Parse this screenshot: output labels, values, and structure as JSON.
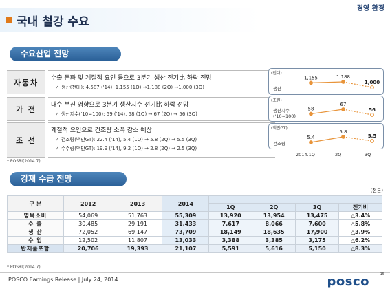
{
  "header": {
    "section": "경영 환경",
    "title": "국내 철강 수요"
  },
  "demand": {
    "pill": "수요산업 전망",
    "rows": [
      {
        "name": "자동차",
        "text": "수출 둔화 및 계절적 요인 등으로 3분기 생산 전기比 하락 전망",
        "sub": "생산(천대): 4,587 ('14), 1,155 (1Q) →1,188 (2Q) →1,000 (3Q)"
      },
      {
        "name": "가 전",
        "text": "내수 부진 영향으로 3분기 생산지수 전기比 하락 전망",
        "sub": "생산지수('10=100): 59 ('14), 58 (1Q) → 67 (2Q) → 56 (3Q)"
      },
      {
        "name": "조 선",
        "text": "계절적 요인으로 건조량 소폭 감소 예상",
        "sub": "건조량(백만GT): 22.4 ('14), 5.4 (1Q) → 5.8 (2Q) → 5.5 (3Q)",
        "sub2": "수주량(백만GT): 19.9 ('14), 9.2 (1Q) → 2.8 (2Q) → 2.5 (3Q)"
      }
    ],
    "note": "* POSRI(2014.7)"
  },
  "mini_charts": {
    "x_labels": [
      "2014.1Q",
      "2Q",
      "3Q"
    ],
    "line_color": "#e8943a",
    "charts": [
      {
        "tag": "(천대)",
        "label": "생산",
        "values": [
          1155,
          1188,
          1000
        ],
        "value_labels": [
          "1,155",
          "1,188",
          "1,000"
        ]
      },
      {
        "tag": "(조원)",
        "label": "생산지수",
        "label2": "('10=100)",
        "values": [
          58,
          67,
          56
        ],
        "value_labels": [
          "58",
          "67",
          "56"
        ]
      },
      {
        "tag": "(백만GT)",
        "label": "건조량",
        "values": [
          5.4,
          5.8,
          5.5
        ],
        "value_labels": [
          "5.4",
          "5.8",
          "5.5"
        ]
      }
    ]
  },
  "supply": {
    "pill": "강재 수급 전망",
    "unit": "(천톤)",
    "col_category": "구 분",
    "col_2012": "2012",
    "col_2013": "2013",
    "col_2014": "2014",
    "sub_q1": "1Q",
    "sub_q2": "2Q",
    "sub_q3": "3Q",
    "sub_chg": "전기비",
    "rows": [
      {
        "name": "명목소비",
        "y2012": "54,069",
        "y2013": "51,763",
        "y2014": "55,309",
        "q1": "13,920",
        "q2": "13,954",
        "q3": "13,475",
        "chg": "△3.4%"
      },
      {
        "name": "수 출",
        "y2012": "30,485",
        "y2013": "29,191",
        "y2014": "31,433",
        "q1": "7,617",
        "q2": "8,066",
        "q3": "7,600",
        "chg": "△5.8%"
      },
      {
        "name": "생 산",
        "y2012": "72,052",
        "y2013": "69,147",
        "y2014": "73,709",
        "q1": "18,149",
        "q2": "18,635",
        "q3": "17,900",
        "chg": "△3.9%"
      },
      {
        "name": "수 입",
        "y2012": "12,502",
        "y2013": "11,807",
        "y2014": "13,033",
        "q1": "3,388",
        "q2": "3,385",
        "q3": "3,175",
        "chg": "△6.2%"
      },
      {
        "name": "반제품포함",
        "y2012": "20,706",
        "y2013": "19,393",
        "y2014": "21,107",
        "q1": "5,591",
        "q2": "5,616",
        "q3": "5,150",
        "chg": "△8.3%"
      }
    ],
    "note": "* POSRI(2014.7)"
  },
  "footer": {
    "text": "POSCO Earnings Release  |  July 24, 2014",
    "page": "15",
    "logo": "posco"
  }
}
